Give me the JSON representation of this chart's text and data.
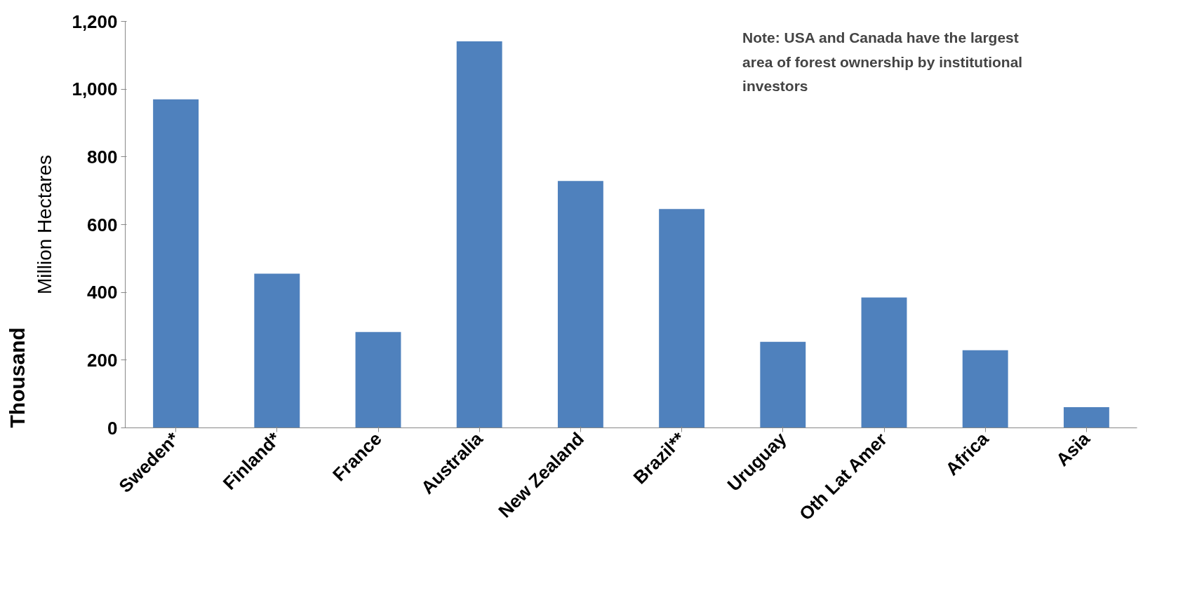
{
  "chart_data": {
    "type": "bar",
    "categories": [
      "Sweden*",
      "Finland*",
      "France",
      "Australia",
      "New Zealand",
      "Brazil**",
      "Uruguay",
      "Oth Lat Amer",
      "Africa",
      "Asia"
    ],
    "values": [
      970,
      455,
      283,
      1141,
      729,
      646,
      254,
      385,
      229,
      61
    ],
    "color": "#4f81bd",
    "ylim": [
      0,
      1200
    ],
    "yticks": [
      0,
      200,
      400,
      600,
      800,
      {
        "value": 1000,
        "label": "1,000"
      },
      {
        "value": 1200,
        "label": "1,200"
      }
    ],
    "ylabel": "Million Hectares",
    "annotations": [
      "Thousand",
      "Note: USA and Canada have the largest\narea of forest ownership by institutional\ninvestors"
    ]
  }
}
